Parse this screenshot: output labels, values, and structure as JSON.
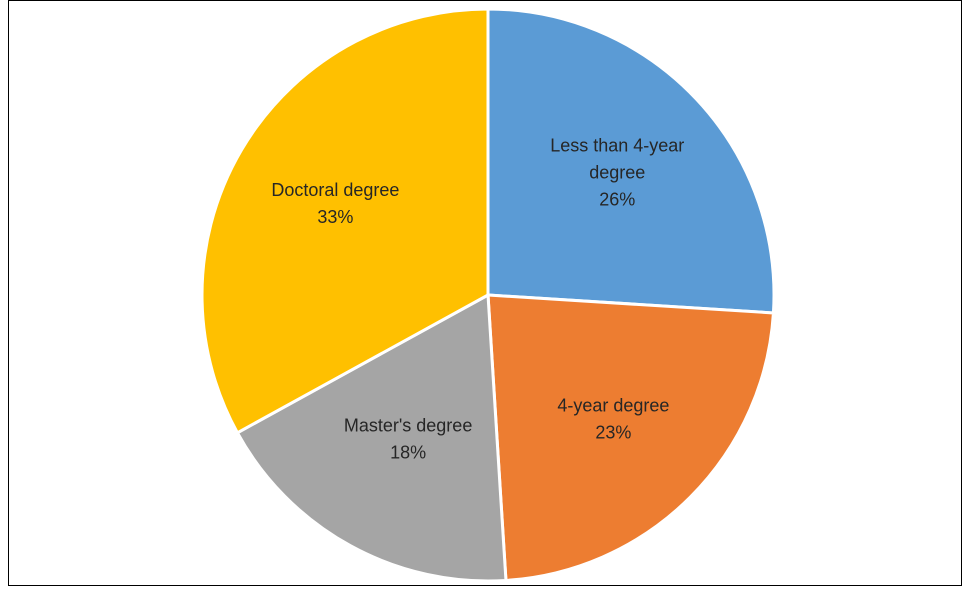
{
  "chart_data": {
    "type": "pie",
    "title": "",
    "slices": [
      {
        "label": "Less than 4-year degree",
        "label_lines": [
          "Less than 4-year",
          "degree"
        ],
        "value": 26,
        "value_label": "26%",
        "color": "#5B9BD5"
      },
      {
        "label": "4-year degree",
        "label_lines": [
          "4-year degree"
        ],
        "value": 23,
        "value_label": "23%",
        "color": "#ED7D31"
      },
      {
        "label": "Master's degree",
        "label_lines": [
          "Master's degree"
        ],
        "value": 18,
        "value_label": "18%",
        "color": "#A5A5A5"
      },
      {
        "label": "Doctoral degree",
        "label_lines": [
          "Doctoral degree"
        ],
        "value": 33,
        "value_label": "33%",
        "color": "#FFC000"
      }
    ],
    "start_angle_deg": 0,
    "direction": "clockwise",
    "legend": "none",
    "data_labels": "inside"
  }
}
